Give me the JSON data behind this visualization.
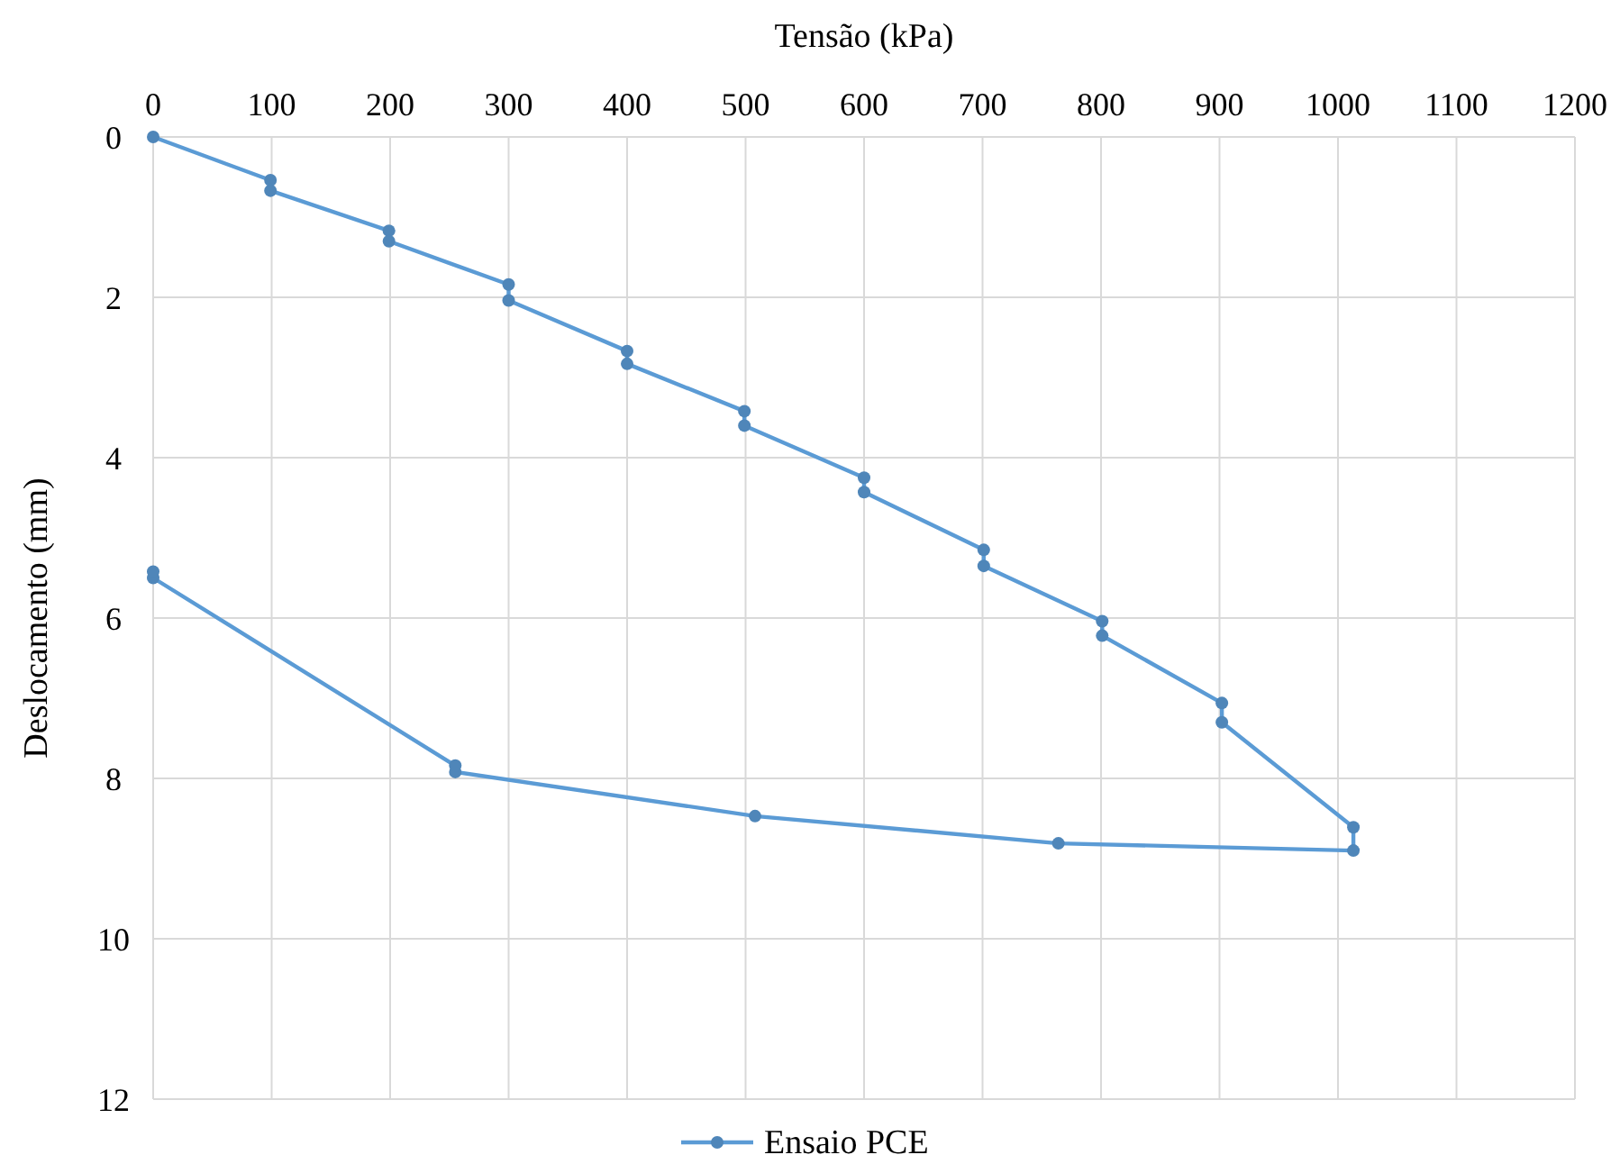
{
  "chart_data": {
    "type": "line",
    "xlabel": "Tensão (kPa)",
    "ylabel": "Deslocamento (mm)",
    "xlim": [
      0,
      1200
    ],
    "xticks": [
      0,
      100,
      200,
      300,
      400,
      500,
      600,
      700,
      800,
      900,
      1000,
      1100,
      1200
    ],
    "ylim": [
      12,
      0
    ],
    "yticks": [
      0,
      2,
      4,
      6,
      8,
      10,
      12
    ],
    "grid": true,
    "legend": "bottom",
    "marker": "circle",
    "line_style": "solid",
    "series": [
      {
        "name": "Ensaio PCE",
        "color": "#5b9bd5",
        "x": [
          0,
          99,
          99,
          199,
          199,
          300,
          300,
          400,
          400,
          499,
          499,
          600,
          600,
          701,
          701,
          801,
          801,
          902,
          902,
          1013,
          1013,
          764,
          508,
          255,
          255,
          0,
          0
        ],
        "values": [
          0,
          0.54,
          0.67,
          1.17,
          1.3,
          1.84,
          2.04,
          2.67,
          2.83,
          3.42,
          3.6,
          4.25,
          4.43,
          5.15,
          5.35,
          6.04,
          6.22,
          7.06,
          7.3,
          8.61,
          8.9,
          8.81,
          8.47,
          7.92,
          7.84,
          5.5,
          5.42
        ]
      }
    ]
  }
}
